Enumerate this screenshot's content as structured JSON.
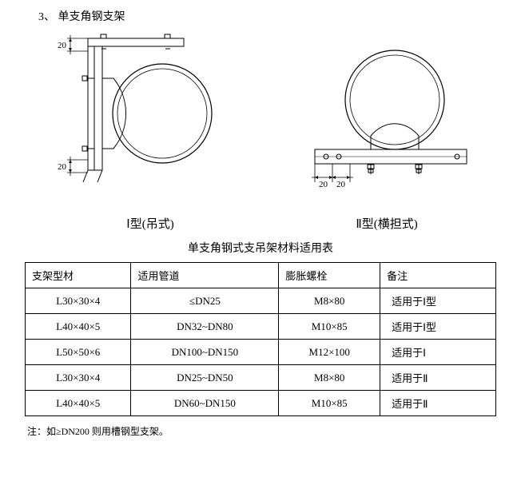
{
  "heading": "3、   单支角钢支架",
  "diagramI": {
    "caption": "Ⅰ型(吊式)",
    "dim_top": "20",
    "dim_bottom": "20"
  },
  "diagramII": {
    "caption": "Ⅱ型(横担式)",
    "dim_a": "20",
    "dim_b": "20"
  },
  "svg_colors": {
    "stroke": "#000000",
    "fill": "none",
    "bg": "#ffffff"
  },
  "table": {
    "title": "单支角钢式支吊架材料适用表",
    "columns": [
      "支架型材",
      "适用管道",
      "膨胀螺栓",
      "备注"
    ],
    "rows": [
      [
        "L30×30×4",
        "≤DN25",
        "M8×80",
        "适用于Ⅰ型"
      ],
      [
        "L40×40×5",
        "DN32~DN80",
        "M10×85",
        "适用于Ⅰ型"
      ],
      [
        "L50×50×6",
        "DN100~DN150",
        "M12×100",
        "适用于Ⅰ"
      ],
      [
        "L30×30×4",
        "DN25~DN50",
        "M8×80",
        "适用于Ⅱ"
      ],
      [
        "L40×40×5",
        "DN60~DN150",
        "M10×85",
        "适用于Ⅱ"
      ]
    ]
  },
  "note": "注：如≥DN200 则用槽钢型支架。"
}
